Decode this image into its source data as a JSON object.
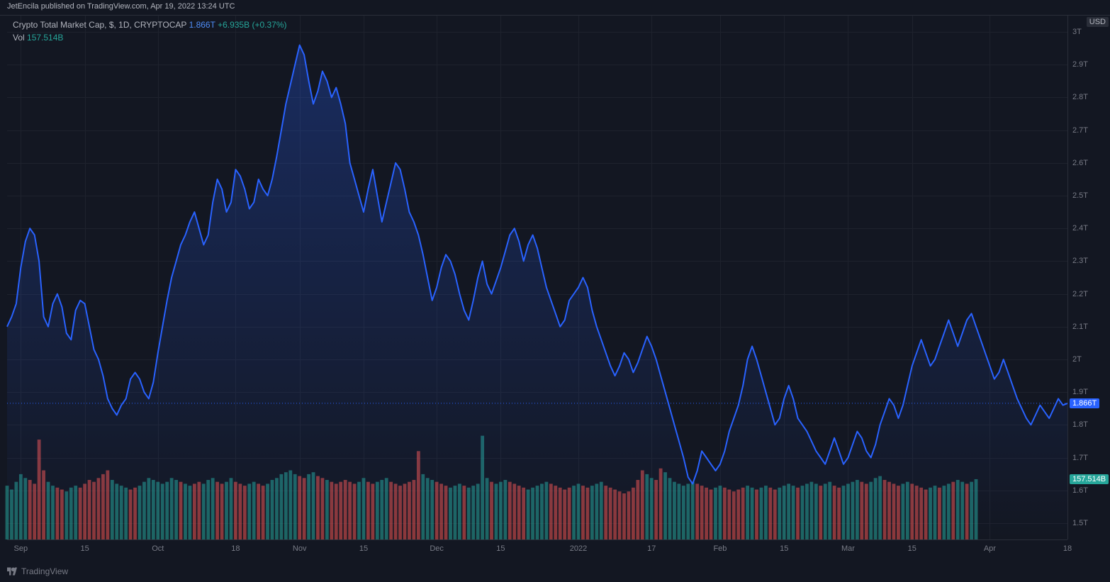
{
  "header": {
    "publish_text": "JetEncila published on TradingView.com, Apr 19, 2022 13:24 UTC"
  },
  "footer": {
    "brand": "TradingView"
  },
  "legend": {
    "title": "Crypto Total Market Cap, $, 1D, CRYPTOCAP",
    "last_value": "1.866T",
    "change_abs": "+6.935B",
    "change_pct": "(+0.37%)",
    "vol_label": "Vol",
    "vol_value": "157.514B"
  },
  "axis_badges": {
    "currency": "USD",
    "price_marker": {
      "text": "1.866T",
      "bg": "#2962ff"
    },
    "vol_marker": {
      "text": "157.514B",
      "bg": "#26a69a"
    }
  },
  "chart": {
    "type": "line+volume",
    "background_color": "#131722",
    "grid_color": "#1e222d",
    "line_color": "#2962ff",
    "line_width": 2,
    "area_fill_top": "rgba(41,98,255,0.28)",
    "area_fill_bottom": "rgba(41,98,255,0.0)",
    "price_dotted_color": "#2962ff",
    "vol_up_color": "#26a69a",
    "vol_down_color": "#ef5350",
    "vol_opacity": 0.55,
    "y_domain_price": [
      1.45,
      3.05
    ],
    "y_ticks_price": [
      {
        "v": 3.0,
        "label": "3T"
      },
      {
        "v": 2.9,
        "label": "2.9T"
      },
      {
        "v": 2.8,
        "label": "2.8T"
      },
      {
        "v": 2.7,
        "label": "2.7T"
      },
      {
        "v": 2.6,
        "label": "2.6T"
      },
      {
        "v": 2.5,
        "label": "2.5T"
      },
      {
        "v": 2.4,
        "label": "2.4T"
      },
      {
        "v": 2.3,
        "label": "2.3T"
      },
      {
        "v": 2.2,
        "label": "2.2T"
      },
      {
        "v": 2.1,
        "label": "2.1T"
      },
      {
        "v": 2.0,
        "label": "2T"
      },
      {
        "v": 1.9,
        "label": "1.9T"
      },
      {
        "v": 1.8,
        "label": "1.8T"
      },
      {
        "v": 1.7,
        "label": "1.7T"
      },
      {
        "v": 1.6,
        "label": "1.6T"
      },
      {
        "v": 1.5,
        "label": "1.5T"
      }
    ],
    "x_ticks": [
      {
        "i": 3,
        "label": "Sep"
      },
      {
        "i": 17,
        "label": "15"
      },
      {
        "i": 33,
        "label": "Oct"
      },
      {
        "i": 50,
        "label": "18"
      },
      {
        "i": 64,
        "label": "Nov"
      },
      {
        "i": 78,
        "label": "15"
      },
      {
        "i": 94,
        "label": "Dec"
      },
      {
        "i": 108,
        "label": "15"
      },
      {
        "i": 125,
        "label": "2022"
      },
      {
        "i": 141,
        "label": "17"
      },
      {
        "i": 156,
        "label": "Feb"
      },
      {
        "i": 170,
        "label": "15"
      },
      {
        "i": 184,
        "label": "Mar"
      },
      {
        "i": 198,
        "label": "15"
      },
      {
        "i": 215,
        "label": "Apr"
      },
      {
        "i": 232,
        "label": "18"
      }
    ],
    "current_price": 1.866,
    "price_series": [
      2.1,
      2.13,
      2.17,
      2.28,
      2.36,
      2.4,
      2.38,
      2.3,
      2.13,
      2.1,
      2.17,
      2.2,
      2.16,
      2.08,
      2.06,
      2.15,
      2.18,
      2.17,
      2.1,
      2.03,
      2.0,
      1.95,
      1.88,
      1.85,
      1.83,
      1.86,
      1.88,
      1.94,
      1.96,
      1.94,
      1.9,
      1.88,
      1.93,
      2.02,
      2.1,
      2.18,
      2.25,
      2.3,
      2.35,
      2.38,
      2.42,
      2.45,
      2.4,
      2.35,
      2.38,
      2.48,
      2.55,
      2.52,
      2.45,
      2.48,
      2.58,
      2.56,
      2.52,
      2.46,
      2.48,
      2.55,
      2.52,
      2.5,
      2.55,
      2.62,
      2.7,
      2.78,
      2.84,
      2.9,
      2.96,
      2.93,
      2.85,
      2.78,
      2.82,
      2.88,
      2.85,
      2.8,
      2.83,
      2.78,
      2.72,
      2.6,
      2.55,
      2.5,
      2.45,
      2.52,
      2.58,
      2.5,
      2.42,
      2.48,
      2.54,
      2.6,
      2.58,
      2.52,
      2.45,
      2.42,
      2.38,
      2.32,
      2.25,
      2.18,
      2.22,
      2.28,
      2.32,
      2.3,
      2.26,
      2.2,
      2.15,
      2.12,
      2.18,
      2.25,
      2.3,
      2.23,
      2.2,
      2.24,
      2.28,
      2.33,
      2.38,
      2.4,
      2.36,
      2.3,
      2.35,
      2.38,
      2.34,
      2.28,
      2.22,
      2.18,
      2.14,
      2.1,
      2.12,
      2.18,
      2.2,
      2.22,
      2.25,
      2.22,
      2.15,
      2.1,
      2.06,
      2.02,
      1.98,
      1.95,
      1.98,
      2.02,
      2.0,
      1.96,
      1.99,
      2.03,
      2.07,
      2.04,
      2.0,
      1.95,
      1.9,
      1.85,
      1.8,
      1.75,
      1.7,
      1.64,
      1.62,
      1.66,
      1.72,
      1.7,
      1.68,
      1.66,
      1.68,
      1.72,
      1.78,
      1.82,
      1.86,
      1.92,
      2.0,
      2.04,
      2.0,
      1.95,
      1.9,
      1.85,
      1.8,
      1.82,
      1.88,
      1.92,
      1.88,
      1.82,
      1.8,
      1.78,
      1.75,
      1.72,
      1.7,
      1.68,
      1.72,
      1.76,
      1.72,
      1.68,
      1.7,
      1.74,
      1.78,
      1.76,
      1.72,
      1.7,
      1.74,
      1.8,
      1.84,
      1.88,
      1.86,
      1.82,
      1.86,
      1.92,
      1.98,
      2.02,
      2.06,
      2.02,
      1.98,
      2.0,
      2.04,
      2.08,
      2.12,
      2.08,
      2.04,
      2.08,
      2.12,
      2.14,
      2.1,
      2.06,
      2.02,
      1.98,
      1.94,
      1.96,
      2.0,
      1.96,
      1.92,
      1.88,
      1.85,
      1.82,
      1.8,
      1.83,
      1.86,
      1.84,
      1.82,
      1.85,
      1.88,
      1.86,
      1.866
    ],
    "volume_series": [
      {
        "v": 140,
        "up": true
      },
      {
        "v": 130,
        "up": true
      },
      {
        "v": 150,
        "up": true
      },
      {
        "v": 170,
        "up": true
      },
      {
        "v": 160,
        "up": true
      },
      {
        "v": 155,
        "up": false
      },
      {
        "v": 145,
        "up": false
      },
      {
        "v": 260,
        "up": false
      },
      {
        "v": 180,
        "up": false
      },
      {
        "v": 150,
        "up": true
      },
      {
        "v": 140,
        "up": true
      },
      {
        "v": 135,
        "up": false
      },
      {
        "v": 130,
        "up": false
      },
      {
        "v": 125,
        "up": true
      },
      {
        "v": 135,
        "up": true
      },
      {
        "v": 140,
        "up": true
      },
      {
        "v": 135,
        "up": false
      },
      {
        "v": 145,
        "up": false
      },
      {
        "v": 155,
        "up": false
      },
      {
        "v": 150,
        "up": false
      },
      {
        "v": 160,
        "up": false
      },
      {
        "v": 170,
        "up": false
      },
      {
        "v": 180,
        "up": false
      },
      {
        "v": 155,
        "up": true
      },
      {
        "v": 145,
        "up": true
      },
      {
        "v": 140,
        "up": true
      },
      {
        "v": 135,
        "up": true
      },
      {
        "v": 130,
        "up": false
      },
      {
        "v": 135,
        "up": false
      },
      {
        "v": 140,
        "up": true
      },
      {
        "v": 150,
        "up": true
      },
      {
        "v": 160,
        "up": true
      },
      {
        "v": 155,
        "up": true
      },
      {
        "v": 150,
        "up": true
      },
      {
        "v": 145,
        "up": true
      },
      {
        "v": 150,
        "up": true
      },
      {
        "v": 160,
        "up": true
      },
      {
        "v": 155,
        "up": true
      },
      {
        "v": 150,
        "up": false
      },
      {
        "v": 145,
        "up": true
      },
      {
        "v": 140,
        "up": true
      },
      {
        "v": 145,
        "up": false
      },
      {
        "v": 150,
        "up": false
      },
      {
        "v": 145,
        "up": true
      },
      {
        "v": 155,
        "up": true
      },
      {
        "v": 160,
        "up": true
      },
      {
        "v": 150,
        "up": false
      },
      {
        "v": 145,
        "up": false
      },
      {
        "v": 150,
        "up": true
      },
      {
        "v": 160,
        "up": true
      },
      {
        "v": 150,
        "up": false
      },
      {
        "v": 145,
        "up": false
      },
      {
        "v": 140,
        "up": false
      },
      {
        "v": 145,
        "up": true
      },
      {
        "v": 150,
        "up": true
      },
      {
        "v": 145,
        "up": false
      },
      {
        "v": 140,
        "up": false
      },
      {
        "v": 145,
        "up": true
      },
      {
        "v": 155,
        "up": true
      },
      {
        "v": 160,
        "up": true
      },
      {
        "v": 170,
        "up": true
      },
      {
        "v": 175,
        "up": true
      },
      {
        "v": 180,
        "up": true
      },
      {
        "v": 170,
        "up": true
      },
      {
        "v": 165,
        "up": false
      },
      {
        "v": 160,
        "up": false
      },
      {
        "v": 170,
        "up": true
      },
      {
        "v": 175,
        "up": true
      },
      {
        "v": 165,
        "up": false
      },
      {
        "v": 160,
        "up": false
      },
      {
        "v": 155,
        "up": true
      },
      {
        "v": 150,
        "up": false
      },
      {
        "v": 145,
        "up": false
      },
      {
        "v": 150,
        "up": false
      },
      {
        "v": 155,
        "up": false
      },
      {
        "v": 150,
        "up": false
      },
      {
        "v": 145,
        "up": false
      },
      {
        "v": 150,
        "up": true
      },
      {
        "v": 160,
        "up": true
      },
      {
        "v": 150,
        "up": false
      },
      {
        "v": 145,
        "up": false
      },
      {
        "v": 150,
        "up": true
      },
      {
        "v": 155,
        "up": true
      },
      {
        "v": 160,
        "up": true
      },
      {
        "v": 150,
        "up": false
      },
      {
        "v": 145,
        "up": false
      },
      {
        "v": 140,
        "up": false
      },
      {
        "v": 145,
        "up": false
      },
      {
        "v": 150,
        "up": false
      },
      {
        "v": 155,
        "up": false
      },
      {
        "v": 230,
        "up": false
      },
      {
        "v": 170,
        "up": true
      },
      {
        "v": 160,
        "up": true
      },
      {
        "v": 155,
        "up": true
      },
      {
        "v": 150,
        "up": false
      },
      {
        "v": 145,
        "up": false
      },
      {
        "v": 140,
        "up": false
      },
      {
        "v": 135,
        "up": true
      },
      {
        "v": 140,
        "up": true
      },
      {
        "v": 145,
        "up": true
      },
      {
        "v": 140,
        "up": false
      },
      {
        "v": 135,
        "up": true
      },
      {
        "v": 140,
        "up": true
      },
      {
        "v": 145,
        "up": true
      },
      {
        "v": 270,
        "up": true
      },
      {
        "v": 160,
        "up": true
      },
      {
        "v": 150,
        "up": false
      },
      {
        "v": 145,
        "up": true
      },
      {
        "v": 150,
        "up": true
      },
      {
        "v": 155,
        "up": true
      },
      {
        "v": 150,
        "up": false
      },
      {
        "v": 145,
        "up": false
      },
      {
        "v": 140,
        "up": false
      },
      {
        "v": 135,
        "up": false
      },
      {
        "v": 130,
        "up": true
      },
      {
        "v": 135,
        "up": true
      },
      {
        "v": 140,
        "up": true
      },
      {
        "v": 145,
        "up": true
      },
      {
        "v": 150,
        "up": true
      },
      {
        "v": 145,
        "up": false
      },
      {
        "v": 140,
        "up": false
      },
      {
        "v": 135,
        "up": false
      },
      {
        "v": 130,
        "up": false
      },
      {
        "v": 135,
        "up": false
      },
      {
        "v": 140,
        "up": true
      },
      {
        "v": 145,
        "up": true
      },
      {
        "v": 140,
        "up": false
      },
      {
        "v": 135,
        "up": false
      },
      {
        "v": 140,
        "up": true
      },
      {
        "v": 145,
        "up": true
      },
      {
        "v": 150,
        "up": true
      },
      {
        "v": 140,
        "up": false
      },
      {
        "v": 135,
        "up": false
      },
      {
        "v": 130,
        "up": false
      },
      {
        "v": 125,
        "up": false
      },
      {
        "v": 120,
        "up": false
      },
      {
        "v": 125,
        "up": false
      },
      {
        "v": 135,
        "up": false
      },
      {
        "v": 155,
        "up": false
      },
      {
        "v": 180,
        "up": false
      },
      {
        "v": 170,
        "up": true
      },
      {
        "v": 160,
        "up": true
      },
      {
        "v": 155,
        "up": false
      },
      {
        "v": 185,
        "up": false
      },
      {
        "v": 175,
        "up": true
      },
      {
        "v": 160,
        "up": true
      },
      {
        "v": 150,
        "up": true
      },
      {
        "v": 145,
        "up": true
      },
      {
        "v": 140,
        "up": true
      },
      {
        "v": 145,
        "up": true
      },
      {
        "v": 150,
        "up": true
      },
      {
        "v": 145,
        "up": false
      },
      {
        "v": 140,
        "up": false
      },
      {
        "v": 135,
        "up": false
      },
      {
        "v": 130,
        "up": false
      },
      {
        "v": 135,
        "up": true
      },
      {
        "v": 140,
        "up": true
      },
      {
        "v": 135,
        "up": false
      },
      {
        "v": 130,
        "up": false
      },
      {
        "v": 125,
        "up": false
      },
      {
        "v": 130,
        "up": false
      },
      {
        "v": 135,
        "up": false
      },
      {
        "v": 140,
        "up": true
      },
      {
        "v": 135,
        "up": true
      },
      {
        "v": 130,
        "up": false
      },
      {
        "v": 135,
        "up": true
      },
      {
        "v": 140,
        "up": true
      },
      {
        "v": 135,
        "up": false
      },
      {
        "v": 130,
        "up": false
      },
      {
        "v": 135,
        "up": true
      },
      {
        "v": 140,
        "up": true
      },
      {
        "v": 145,
        "up": true
      },
      {
        "v": 140,
        "up": true
      },
      {
        "v": 135,
        "up": false
      },
      {
        "v": 140,
        "up": true
      },
      {
        "v": 145,
        "up": true
      },
      {
        "v": 150,
        "up": true
      },
      {
        "v": 145,
        "up": true
      },
      {
        "v": 140,
        "up": false
      },
      {
        "v": 145,
        "up": true
      },
      {
        "v": 150,
        "up": true
      },
      {
        "v": 140,
        "up": false
      },
      {
        "v": 135,
        "up": false
      },
      {
        "v": 140,
        "up": true
      },
      {
        "v": 145,
        "up": true
      },
      {
        "v": 150,
        "up": true
      },
      {
        "v": 155,
        "up": true
      },
      {
        "v": 150,
        "up": false
      },
      {
        "v": 145,
        "up": false
      },
      {
        "v": 150,
        "up": true
      },
      {
        "v": 160,
        "up": true
      },
      {
        "v": 165,
        "up": true
      },
      {
        "v": 155,
        "up": false
      },
      {
        "v": 150,
        "up": false
      },
      {
        "v": 145,
        "up": false
      },
      {
        "v": 140,
        "up": false
      },
      {
        "v": 145,
        "up": true
      },
      {
        "v": 150,
        "up": true
      },
      {
        "v": 145,
        "up": false
      },
      {
        "v": 140,
        "up": false
      },
      {
        "v": 135,
        "up": false
      },
      {
        "v": 130,
        "up": false
      },
      {
        "v": 135,
        "up": true
      },
      {
        "v": 140,
        "up": true
      },
      {
        "v": 135,
        "up": false
      },
      {
        "v": 140,
        "up": true
      },
      {
        "v": 145,
        "up": true
      },
      {
        "v": 150,
        "up": false
      },
      {
        "v": 155,
        "up": true
      },
      {
        "v": 150,
        "up": true
      },
      {
        "v": 145,
        "up": false
      },
      {
        "v": 150,
        "up": true
      },
      {
        "v": 157,
        "up": true
      }
    ],
    "volume_max": 300
  }
}
